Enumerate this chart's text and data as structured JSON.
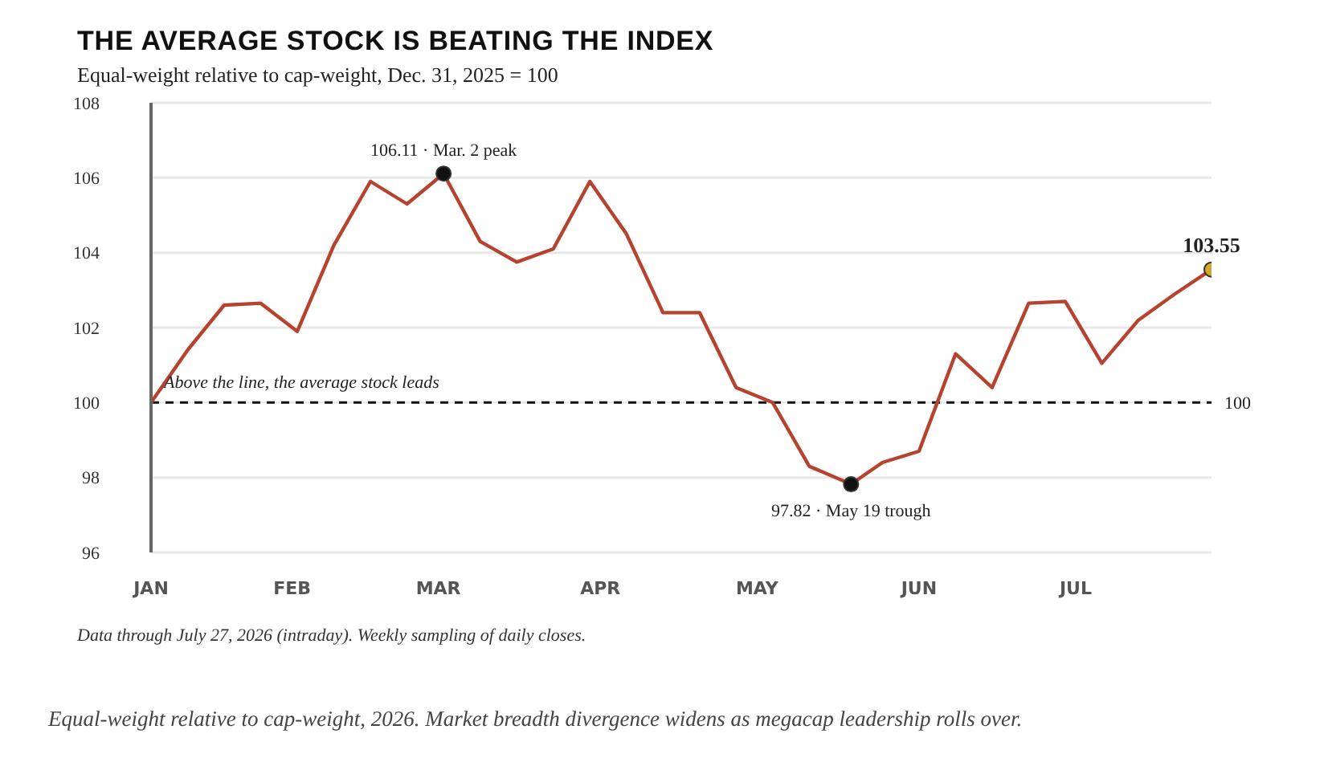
{
  "chart_data": {
    "type": "line",
    "title": "THE AVERAGE STOCK IS BEATING THE INDEX",
    "subtitle": "Equal-weight relative to cap-weight, Dec. 31, 2025 = 100",
    "x": [
      "2026-01-05",
      "2026-01-12",
      "2026-01-19",
      "2026-01-26",
      "2026-02-02",
      "2026-02-09",
      "2026-02-16",
      "2026-02-23",
      "2026-03-02",
      "2026-03-09",
      "2026-03-16",
      "2026-03-23",
      "2026-03-30",
      "2026-04-06",
      "2026-04-13",
      "2026-04-20",
      "2026-04-27",
      "2026-05-04",
      "2026-05-11",
      "2026-05-19",
      "2026-05-25",
      "2026-06-01",
      "2026-06-08",
      "2026-06-15",
      "2026-06-22",
      "2026-06-29",
      "2026-07-06",
      "2026-07-13",
      "2026-07-20",
      "2026-07-27"
    ],
    "series": [
      {
        "color": "#b5432f",
        "marker": "none",
        "values": [
          100.0,
          101.4,
          102.6,
          102.65,
          101.9,
          104.2,
          105.9,
          105.3,
          106.11,
          104.3,
          103.75,
          104.1,
          105.9,
          104.5,
          102.4,
          102.4,
          100.4,
          100.0,
          98.3,
          97.82,
          98.4,
          98.7,
          101.3,
          100.4,
          102.65,
          102.7,
          101.05,
          102.2,
          102.9,
          103.55
        ]
      },
      {
        "type": "scatter",
        "marker": "circle",
        "color": "#111111",
        "x": [
          "2026-03-02",
          "2026-05-19"
        ],
        "values": [
          106.11,
          97.82
        ]
      },
      {
        "type": "scatter",
        "marker": "circle",
        "color": "#d4a62a",
        "x": [
          "2026-07-27"
        ],
        "values": [
          103.55
        ]
      }
    ],
    "xlim": [
      "2026-01-05",
      "2026-07-27"
    ],
    "xticks": [
      {
        "value": "2026-01-05",
        "label": "JAN"
      },
      {
        "value": "2026-02-01",
        "label": "FEB"
      },
      {
        "value": "2026-03-01",
        "label": "MAR"
      },
      {
        "value": "2026-04-01",
        "label": "APR"
      },
      {
        "value": "2026-05-01",
        "label": "MAY"
      },
      {
        "value": "2026-06-01",
        "label": "JUN"
      },
      {
        "value": "2026-07-01",
        "label": "JUL"
      }
    ],
    "ylim": [
      96,
      108
    ],
    "yticks": [
      96,
      98,
      100,
      102,
      104,
      106,
      108
    ],
    "grid": "y",
    "line_style": "solid",
    "ref_lines": [
      {
        "axis": "y",
        "value": 100,
        "label": "100",
        "color": "#111111",
        "line_style": "dashed"
      }
    ],
    "annotations": [
      {
        "text": "Above the line, the average stock leads",
        "x": "2026-01-05",
        "y": 100
      },
      {
        "text": "106.11 · Mar. 2 peak",
        "x": "2026-03-02",
        "y": 106.11
      },
      {
        "text": "97.82 · May 19 trough",
        "x": "2026-05-19",
        "y": 97.82
      },
      {
        "text": "103.55",
        "x": "2026-07-27",
        "y": 103.55
      },
      "Data through July 27, 2026 (intraday). Weekly sampling of daily closes.",
      "Equal-weight relative to cap-weight, 2026. Market breadth divergence widens as megacap leadership rolls over."
    ]
  }
}
